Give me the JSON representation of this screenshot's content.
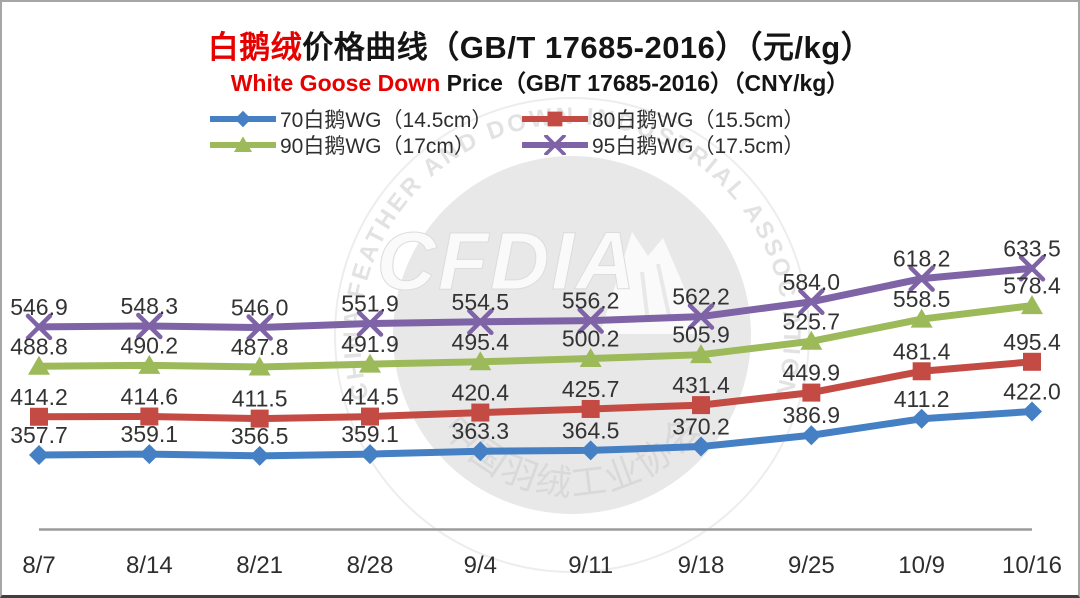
{
  "title": {
    "highlight": "白鹅绒",
    "rest": "价格曲线（GB/T 17685-2016）（元/kg）"
  },
  "subtitle": {
    "highlight": "White Goose Down",
    "rest": " Price（GB/T 17685-2016）（CNY/kg）"
  },
  "colors": {
    "accent_red_text": "#e60000",
    "series_70": "#4580c4",
    "series_80": "#c44b44",
    "series_90": "#9cba59",
    "series_95": "#7e63a6",
    "axis_line": "#9b9b9b",
    "label_text": "#333333",
    "watermark_circle": "#e8e8e8",
    "watermark_ring": "#ededed",
    "watermark_ring_text": "#e2e2e2",
    "watermark_cn_text": "#d9d9d9",
    "watermark_logo": "#fafafa"
  },
  "watermark": {
    "acronym": "CFDIA",
    "ring_text": "CHINA FEATHER AND DOWN INDUSTRIAL ASSOCIATION",
    "cn_text": "中国羽绒工业协会"
  },
  "chart_data": {
    "type": "line",
    "title": "白鹅绒价格曲线（GB/T 17685-2016）（元/kg）",
    "subtitle": "White Goose Down Price（GB/T 17685-2016）（CNY/kg）",
    "categories": [
      "8/7",
      "8/14",
      "8/21",
      "8/28",
      "9/4",
      "9/11",
      "9/18",
      "9/25",
      "10/9",
      "10/16"
    ],
    "series": [
      {
        "name": "70白鹅WG（14.5cm）",
        "marker": "diamond",
        "color": "#4580c4",
        "values": [
          357.7,
          359.1,
          356.5,
          359.1,
          363.3,
          364.5,
          370.2,
          386.9,
          411.2,
          422.0
        ]
      },
      {
        "name": "80白鹅WG（15.5cm）",
        "marker": "square",
        "color": "#c44b44",
        "values": [
          414.2,
          414.6,
          411.5,
          414.5,
          420.4,
          425.7,
          431.4,
          449.9,
          481.4,
          495.4
        ]
      },
      {
        "name": "90白鹅WG（17cm）",
        "marker": "triangle",
        "color": "#9cba59",
        "values": [
          488.8,
          490.2,
          487.8,
          491.9,
          495.4,
          500.2,
          505.9,
          525.7,
          558.5,
          578.4
        ]
      },
      {
        "name": "95白鹅WG（17.5cm）",
        "marker": "x",
        "color": "#7e63a6",
        "values": [
          546.9,
          548.3,
          546.0,
          551.9,
          554.5,
          556.2,
          562.2,
          584.0,
          618.2,
          633.5
        ]
      }
    ],
    "ylim": [
      340,
      650
    ],
    "grid": false,
    "y_axis_visible": false,
    "data_labels": true,
    "legend_position": "top",
    "legend_columns": 2
  }
}
